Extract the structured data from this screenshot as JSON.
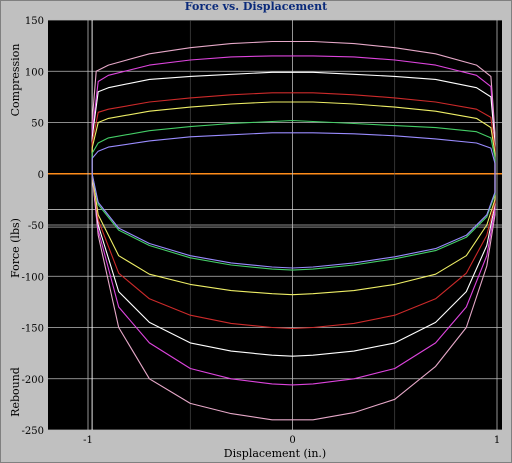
{
  "chart_data": {
    "type": "line",
    "title": "Force vs. Displacement",
    "xlabel": "Displacement (in.)",
    "ylabel": "Force (lbs)",
    "side_labels": {
      "compression": "Compression",
      "rebound": "Rebound"
    },
    "xlim": [
      -1,
      1
    ],
    "ylim": [
      -250,
      150
    ],
    "xticks": [
      -1,
      0,
      1
    ],
    "xtick_labels": [
      "-1",
      "0",
      "1"
    ],
    "yticks": [
      150,
      100,
      50,
      0,
      -50,
      -100,
      -150,
      -200,
      -250
    ],
    "ytick_labels": [
      "150",
      "100",
      "50",
      "0",
      "-50",
      "-100",
      "-150",
      "-200",
      "-250"
    ],
    "grid": true,
    "background": "#000000",
    "zero_line_color": "#ff8c1a",
    "series": [
      {
        "color": "#e6a8c8",
        "compression": [
          [
            -0.98,
            50
          ],
          [
            -0.96,
            100
          ],
          [
            -0.9,
            106
          ],
          [
            -0.7,
            117
          ],
          [
            -0.5,
            123
          ],
          [
            -0.3,
            127
          ],
          [
            -0.1,
            129
          ],
          [
            0,
            129
          ],
          [
            0.1,
            129
          ],
          [
            0.3,
            127
          ],
          [
            0.5,
            123
          ],
          [
            0.7,
            117
          ],
          [
            0.9,
            106
          ],
          [
            0.97,
            95
          ],
          [
            0.99,
            40
          ]
        ],
        "rebound": [
          [
            0.99,
            -40
          ],
          [
            0.95,
            -90
          ],
          [
            0.85,
            -150
          ],
          [
            0.7,
            -188
          ],
          [
            0.5,
            -220
          ],
          [
            0.3,
            -233
          ],
          [
            0.1,
            -240
          ],
          [
            0,
            -240
          ],
          [
            -0.1,
            -240
          ],
          [
            -0.3,
            -234
          ],
          [
            -0.5,
            -224
          ],
          [
            -0.7,
            -200
          ],
          [
            -0.85,
            -150
          ],
          [
            -0.95,
            -60
          ],
          [
            -0.98,
            0
          ]
        ]
      },
      {
        "color": "#dd44dd",
        "compression": [
          [
            -0.98,
            40
          ],
          [
            -0.95,
            90
          ],
          [
            -0.9,
            96
          ],
          [
            -0.7,
            106
          ],
          [
            -0.5,
            111
          ],
          [
            -0.3,
            114
          ],
          [
            -0.1,
            115
          ],
          [
            0,
            115
          ],
          [
            0.1,
            115
          ],
          [
            0.3,
            114
          ],
          [
            0.5,
            111
          ],
          [
            0.7,
            106
          ],
          [
            0.9,
            96
          ],
          [
            0.97,
            85
          ],
          [
            0.99,
            30
          ]
        ],
        "rebound": [
          [
            0.99,
            -35
          ],
          [
            0.95,
            -80
          ],
          [
            0.85,
            -130
          ],
          [
            0.7,
            -165
          ],
          [
            0.5,
            -190
          ],
          [
            0.3,
            -200
          ],
          [
            0.1,
            -205
          ],
          [
            0,
            -206
          ],
          [
            -0.1,
            -205
          ],
          [
            -0.3,
            -200
          ],
          [
            -0.5,
            -190
          ],
          [
            -0.7,
            -165
          ],
          [
            -0.85,
            -130
          ],
          [
            -0.95,
            -55
          ],
          [
            -0.98,
            0
          ]
        ]
      },
      {
        "color": "#ffffff",
        "compression": [
          [
            -0.98,
            35
          ],
          [
            -0.95,
            80
          ],
          [
            -0.9,
            84
          ],
          [
            -0.7,
            92
          ],
          [
            -0.5,
            95
          ],
          [
            -0.3,
            97
          ],
          [
            -0.1,
            99
          ],
          [
            0,
            99
          ],
          [
            0.1,
            99
          ],
          [
            0.3,
            97
          ],
          [
            0.5,
            95
          ],
          [
            0.7,
            92
          ],
          [
            0.9,
            84
          ],
          [
            0.97,
            75
          ],
          [
            0.99,
            30
          ]
        ],
        "rebound": [
          [
            0.99,
            -30
          ],
          [
            0.95,
            -70
          ],
          [
            0.85,
            -115
          ],
          [
            0.7,
            -145
          ],
          [
            0.5,
            -165
          ],
          [
            0.3,
            -173
          ],
          [
            0.1,
            -177
          ],
          [
            0,
            -178
          ],
          [
            -0.1,
            -177
          ],
          [
            -0.3,
            -173
          ],
          [
            -0.5,
            -165
          ],
          [
            -0.7,
            -145
          ],
          [
            -0.85,
            -115
          ],
          [
            -0.95,
            -50
          ],
          [
            -0.98,
            0
          ]
        ]
      },
      {
        "color": "#cc2a2a",
        "compression": [
          [
            -0.98,
            30
          ],
          [
            -0.95,
            60
          ],
          [
            -0.9,
            63
          ],
          [
            -0.7,
            70
          ],
          [
            -0.5,
            74
          ],
          [
            -0.3,
            77
          ],
          [
            -0.1,
            79
          ],
          [
            0,
            79
          ],
          [
            0.1,
            79
          ],
          [
            0.3,
            77
          ],
          [
            0.5,
            74
          ],
          [
            0.7,
            70
          ],
          [
            0.9,
            63
          ],
          [
            0.97,
            55
          ],
          [
            0.99,
            25
          ]
        ],
        "rebound": [
          [
            0.99,
            -28
          ],
          [
            0.95,
            -60
          ],
          [
            0.85,
            -97
          ],
          [
            0.7,
            -122
          ],
          [
            0.5,
            -138
          ],
          [
            0.3,
            -146
          ],
          [
            0.1,
            -150
          ],
          [
            0,
            -151
          ],
          [
            -0.1,
            -150
          ],
          [
            -0.3,
            -146
          ],
          [
            -0.5,
            -138
          ],
          [
            -0.7,
            -122
          ],
          [
            -0.85,
            -97
          ],
          [
            -0.95,
            -45
          ],
          [
            -0.98,
            0
          ]
        ]
      },
      {
        "color": "#eeee66",
        "compression": [
          [
            -0.98,
            25
          ],
          [
            -0.95,
            50
          ],
          [
            -0.9,
            54
          ],
          [
            -0.7,
            61
          ],
          [
            -0.5,
            65
          ],
          [
            -0.3,
            68
          ],
          [
            -0.1,
            70
          ],
          [
            0,
            70
          ],
          [
            0.1,
            70
          ],
          [
            0.3,
            68
          ],
          [
            0.5,
            65
          ],
          [
            0.7,
            61
          ],
          [
            0.9,
            54
          ],
          [
            0.97,
            45
          ],
          [
            0.99,
            20
          ]
        ],
        "rebound": [
          [
            0.99,
            -25
          ],
          [
            0.95,
            -50
          ],
          [
            0.85,
            -80
          ],
          [
            0.7,
            -98
          ],
          [
            0.5,
            -108
          ],
          [
            0.3,
            -114
          ],
          [
            0.1,
            -117
          ],
          [
            0,
            -118
          ],
          [
            -0.1,
            -117
          ],
          [
            -0.3,
            -114
          ],
          [
            -0.5,
            -108
          ],
          [
            -0.7,
            -98
          ],
          [
            -0.85,
            -80
          ],
          [
            -0.95,
            -40
          ],
          [
            -0.98,
            0
          ]
        ]
      },
      {
        "color": "#44cc66",
        "compression": [
          [
            -0.98,
            20
          ],
          [
            -0.95,
            30
          ],
          [
            -0.9,
            35
          ],
          [
            -0.7,
            42
          ],
          [
            -0.5,
            46
          ],
          [
            -0.3,
            49
          ],
          [
            -0.1,
            51
          ],
          [
            0,
            52
          ],
          [
            0.1,
            51
          ],
          [
            0.3,
            49
          ],
          [
            0.5,
            47
          ],
          [
            0.7,
            45
          ],
          [
            0.9,
            41
          ],
          [
            0.97,
            35
          ],
          [
            0.99,
            15
          ]
        ],
        "rebound": [
          [
            0.99,
            -20
          ],
          [
            0.95,
            -42
          ],
          [
            0.85,
            -62
          ],
          [
            0.7,
            -75
          ],
          [
            0.5,
            -83
          ],
          [
            0.3,
            -89
          ],
          [
            0.1,
            -93
          ],
          [
            0,
            -94
          ],
          [
            -0.1,
            -93
          ],
          [
            -0.3,
            -89
          ],
          [
            -0.5,
            -82
          ],
          [
            -0.7,
            -70
          ],
          [
            -0.85,
            -55
          ],
          [
            -0.95,
            -30
          ],
          [
            -0.98,
            0
          ]
        ]
      },
      {
        "color": "#9a8cff",
        "compression": [
          [
            -0.98,
            15
          ],
          [
            -0.95,
            22
          ],
          [
            -0.9,
            26
          ],
          [
            -0.7,
            32
          ],
          [
            -0.5,
            36
          ],
          [
            -0.3,
            38
          ],
          [
            -0.1,
            40
          ],
          [
            0,
            40
          ],
          [
            0.1,
            40
          ],
          [
            0.3,
            39
          ],
          [
            0.5,
            37
          ],
          [
            0.7,
            34
          ],
          [
            0.9,
            30
          ],
          [
            0.97,
            25
          ],
          [
            0.99,
            10
          ]
        ],
        "rebound": [
          [
            0.99,
            -18
          ],
          [
            0.95,
            -40
          ],
          [
            0.85,
            -60
          ],
          [
            0.7,
            -73
          ],
          [
            0.5,
            -81
          ],
          [
            0.3,
            -87
          ],
          [
            0.1,
            -91
          ],
          [
            0,
            -92
          ],
          [
            -0.1,
            -91
          ],
          [
            -0.3,
            -87
          ],
          [
            -0.5,
            -80
          ],
          [
            -0.7,
            -68
          ],
          [
            -0.85,
            -53
          ],
          [
            -0.95,
            -28
          ],
          [
            -0.98,
            0
          ]
        ]
      }
    ]
  }
}
